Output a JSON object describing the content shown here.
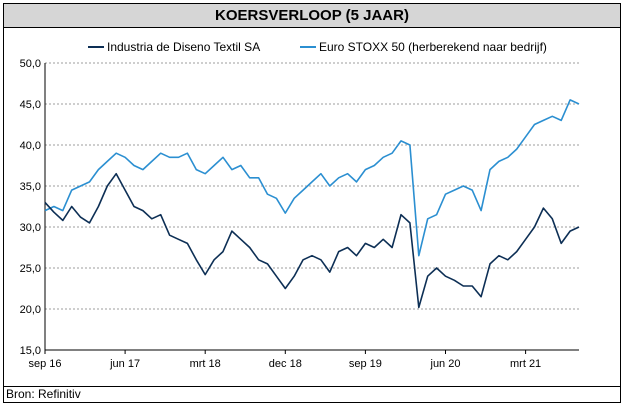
{
  "title": "KOERSVERLOOP (5 JAAR)",
  "source": "Bron: Refinitiv",
  "colors": {
    "series_company": "#0d2f55",
    "series_index": "#2b8fd1",
    "grid": "#7f7f7f"
  },
  "chart_data": {
    "type": "line",
    "title": "KOERSVERLOOP (5 JAAR)",
    "xlabel": "",
    "ylabel": "",
    "ylim": [
      15,
      50
    ],
    "xlim": [
      "2016-09",
      "2021-09"
    ],
    "grid": "horizontal dashed",
    "legend_position": "top",
    "y_ticks": [
      "15,0",
      "20,0",
      "25,0",
      "30,0",
      "35,0",
      "40,0",
      "45,0",
      "50,0"
    ],
    "x_tick_labels": [
      {
        "label": "sep 16",
        "date": "2016-09"
      },
      {
        "label": "jun 17",
        "date": "2017-06"
      },
      {
        "label": "mrt 18",
        "date": "2018-03"
      },
      {
        "label": "dec 18",
        "date": "2018-12"
      },
      {
        "label": "sep 19",
        "date": "2019-09"
      },
      {
        "label": "jun 20",
        "date": "2020-06"
      },
      {
        "label": "mrt 21",
        "date": "2021-03"
      }
    ],
    "series": [
      {
        "name": "Industria de Diseno Textil SA",
        "color": "#0d2f55",
        "points": [
          [
            "2016-09-01",
            33.0
          ],
          [
            "2016-10-01",
            31.8
          ],
          [
            "2016-11-01",
            30.8
          ],
          [
            "2016-12-01",
            32.5
          ],
          [
            "2017-01-01",
            31.2
          ],
          [
            "2017-02-01",
            30.5
          ],
          [
            "2017-03-01",
            32.5
          ],
          [
            "2017-04-01",
            35.0
          ],
          [
            "2017-05-01",
            36.5
          ],
          [
            "2017-06-01",
            34.5
          ],
          [
            "2017-07-01",
            32.5
          ],
          [
            "2017-08-01",
            32.0
          ],
          [
            "2017-09-01",
            31.0
          ],
          [
            "2017-10-01",
            31.5
          ],
          [
            "2017-11-01",
            29.0
          ],
          [
            "2017-12-01",
            28.5
          ],
          [
            "2018-01-01",
            28.0
          ],
          [
            "2018-02-01",
            26.0
          ],
          [
            "2018-03-01",
            24.2
          ],
          [
            "2018-04-01",
            26.0
          ],
          [
            "2018-05-01",
            27.0
          ],
          [
            "2018-06-01",
            29.5
          ],
          [
            "2018-07-01",
            28.5
          ],
          [
            "2018-08-01",
            27.5
          ],
          [
            "2018-09-01",
            26.0
          ],
          [
            "2018-10-01",
            25.5
          ],
          [
            "2018-11-01",
            24.0
          ],
          [
            "2018-12-01",
            22.5
          ],
          [
            "2019-01-01",
            24.0
          ],
          [
            "2019-02-01",
            26.0
          ],
          [
            "2019-03-01",
            26.5
          ],
          [
            "2019-04-01",
            26.0
          ],
          [
            "2019-05-01",
            24.5
          ],
          [
            "2019-06-01",
            27.0
          ],
          [
            "2019-07-01",
            27.5
          ],
          [
            "2019-08-01",
            26.5
          ],
          [
            "2019-09-01",
            28.0
          ],
          [
            "2019-10-01",
            27.5
          ],
          [
            "2019-11-01",
            28.5
          ],
          [
            "2019-12-01",
            27.5
          ],
          [
            "2020-01-01",
            31.5
          ],
          [
            "2020-02-01",
            30.5
          ],
          [
            "2020-03-01",
            20.2
          ],
          [
            "2020-04-01",
            24.0
          ],
          [
            "2020-05-01",
            25.0
          ],
          [
            "2020-06-01",
            24.0
          ],
          [
            "2020-07-01",
            23.5
          ],
          [
            "2020-08-01",
            22.8
          ],
          [
            "2020-09-01",
            22.8
          ],
          [
            "2020-10-01",
            21.5
          ],
          [
            "2020-11-01",
            25.5
          ],
          [
            "2020-12-01",
            26.5
          ],
          [
            "2021-01-01",
            26.0
          ],
          [
            "2021-02-01",
            27.0
          ],
          [
            "2021-03-01",
            28.5
          ],
          [
            "2021-04-01",
            30.0
          ],
          [
            "2021-05-01",
            32.3
          ],
          [
            "2021-06-01",
            31.0
          ],
          [
            "2021-07-01",
            28.0
          ],
          [
            "2021-08-01",
            29.5
          ],
          [
            "2021-09-01",
            30.0
          ]
        ]
      },
      {
        "name": "Euro STOXX 50 (herberekend naar bedrijf)",
        "color": "#2b8fd1",
        "points": [
          [
            "2016-09-01",
            32.0
          ],
          [
            "2016-10-01",
            32.5
          ],
          [
            "2016-11-01",
            32.0
          ],
          [
            "2016-12-01",
            34.5
          ],
          [
            "2017-01-01",
            35.0
          ],
          [
            "2017-02-01",
            35.5
          ],
          [
            "2017-03-01",
            37.0
          ],
          [
            "2017-04-01",
            38.0
          ],
          [
            "2017-05-01",
            39.0
          ],
          [
            "2017-06-01",
            38.5
          ],
          [
            "2017-07-01",
            37.5
          ],
          [
            "2017-08-01",
            37.0
          ],
          [
            "2017-09-01",
            38.0
          ],
          [
            "2017-10-01",
            39.0
          ],
          [
            "2017-11-01",
            38.5
          ],
          [
            "2017-12-01",
            38.5
          ],
          [
            "2018-01-01",
            39.0
          ],
          [
            "2018-02-01",
            37.0
          ],
          [
            "2018-03-01",
            36.5
          ],
          [
            "2018-04-01",
            37.5
          ],
          [
            "2018-05-01",
            38.5
          ],
          [
            "2018-06-01",
            37.0
          ],
          [
            "2018-07-01",
            37.5
          ],
          [
            "2018-08-01",
            36.0
          ],
          [
            "2018-09-01",
            36.0
          ],
          [
            "2018-10-01",
            34.0
          ],
          [
            "2018-11-01",
            33.5
          ],
          [
            "2018-12-01",
            31.7
          ],
          [
            "2019-01-01",
            33.5
          ],
          [
            "2019-02-01",
            34.5
          ],
          [
            "2019-03-01",
            35.5
          ],
          [
            "2019-04-01",
            36.5
          ],
          [
            "2019-05-01",
            35.0
          ],
          [
            "2019-06-01",
            36.0
          ],
          [
            "2019-07-01",
            36.5
          ],
          [
            "2019-08-01",
            35.5
          ],
          [
            "2019-09-01",
            37.0
          ],
          [
            "2019-10-01",
            37.5
          ],
          [
            "2019-11-01",
            38.5
          ],
          [
            "2019-12-01",
            39.0
          ],
          [
            "2020-01-01",
            40.5
          ],
          [
            "2020-02-01",
            40.0
          ],
          [
            "2020-03-01",
            26.5
          ],
          [
            "2020-04-01",
            31.0
          ],
          [
            "2020-05-01",
            31.5
          ],
          [
            "2020-06-01",
            34.0
          ],
          [
            "2020-07-01",
            34.5
          ],
          [
            "2020-08-01",
            35.0
          ],
          [
            "2020-09-01",
            34.5
          ],
          [
            "2020-10-01",
            32.0
          ],
          [
            "2020-11-01",
            37.0
          ],
          [
            "2020-12-01",
            38.0
          ],
          [
            "2021-01-01",
            38.5
          ],
          [
            "2021-02-01",
            39.5
          ],
          [
            "2021-03-01",
            41.0
          ],
          [
            "2021-04-01",
            42.5
          ],
          [
            "2021-05-01",
            43.0
          ],
          [
            "2021-06-01",
            43.5
          ],
          [
            "2021-07-01",
            43.0
          ],
          [
            "2021-08-01",
            45.5
          ],
          [
            "2021-09-01",
            45.0
          ]
        ]
      }
    ]
  }
}
